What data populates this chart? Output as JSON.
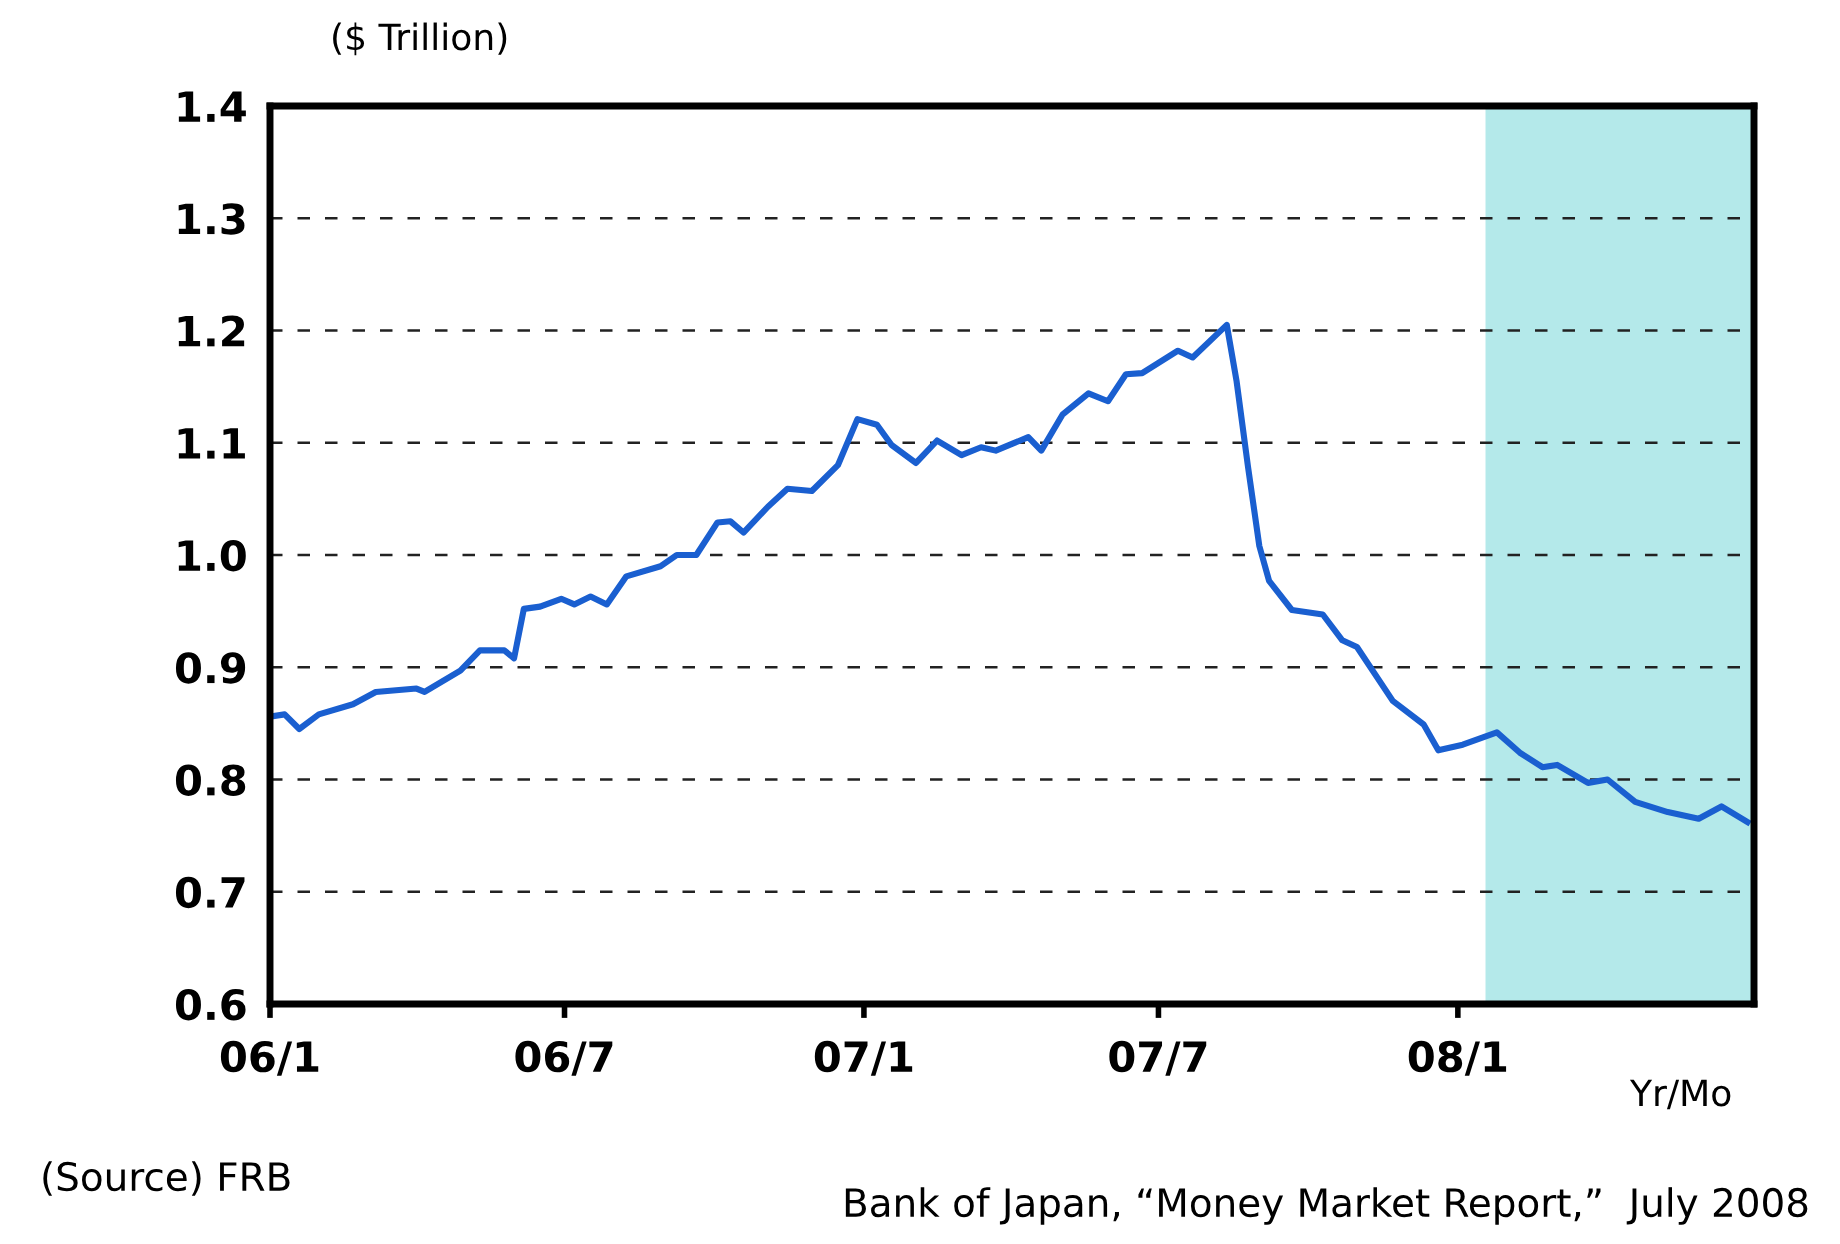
{
  "chart_data": {
    "type": "line",
    "ylabel": "($ Trillion)",
    "xlabel": "Yr/Mo",
    "annotations": [
      "(Source) FRB",
      "Bank of Japan, “Money Market Report,”  July 2008"
    ],
    "x": [
      "2006-01-01",
      "2006-01-10",
      "2006-01-19",
      "2006-01-31",
      "2006-02-21",
      "2006-03-07",
      "2006-04-01",
      "2006-04-06",
      "2006-04-28",
      "2006-05-10",
      "2006-05-25",
      "2006-05-31",
      "2006-06-06",
      "2006-06-16",
      "2006-06-29",
      "2006-07-07",
      "2006-07-17",
      "2006-07-27",
      "2006-08-08",
      "2006-08-29",
      "2006-09-08",
      "2006-09-20",
      "2006-10-03",
      "2006-10-11",
      "2006-10-19",
      "2006-11-03",
      "2006-11-15",
      "2006-11-30",
      "2006-12-16",
      "2006-12-28",
      "2007-01-09",
      "2007-01-18",
      "2007-02-02",
      "2007-02-15",
      "2007-03-02",
      "2007-03-14",
      "2007-03-23",
      "2007-04-12",
      "2007-04-20",
      "2007-05-03",
      "2007-05-19",
      "2007-05-31",
      "2007-06-11",
      "2007-06-21",
      "2007-07-13",
      "2007-07-22",
      "2007-08-12",
      "2007-08-18",
      "2007-08-25",
      "2007-09-01",
      "2007-09-07",
      "2007-09-21",
      "2007-10-10",
      "2007-10-22",
      "2007-10-31",
      "2007-11-22",
      "2007-12-11",
      "2007-12-20",
      "2008-01-04",
      "2008-01-25",
      "2008-02-08",
      "2008-02-22",
      "2008-03-02",
      "2008-03-21",
      "2008-04-02",
      "2008-04-19",
      "2008-05-09",
      "2008-05-28",
      "2008-06-11",
      "2008-06-27"
    ],
    "series": [
      {
        "color": "#1a5fd0",
        "values": [
          0.856,
          0.858,
          0.845,
          0.858,
          0.867,
          0.878,
          0.881,
          0.878,
          0.897,
          0.915,
          0.915,
          0.908,
          0.952,
          0.954,
          0.961,
          0.956,
          0.963,
          0.956,
          0.981,
          0.99,
          1.0,
          1.0,
          1.029,
          1.03,
          1.02,
          1.043,
          1.059,
          1.057,
          1.08,
          1.121,
          1.116,
          1.098,
          1.082,
          1.102,
          1.089,
          1.096,
          1.093,
          1.105,
          1.093,
          1.125,
          1.144,
          1.137,
          1.161,
          1.162,
          1.182,
          1.176,
          1.205,
          1.155,
          1.079,
          1.008,
          0.977,
          0.951,
          0.947,
          0.924,
          0.918,
          0.87,
          0.849,
          0.826,
          0.831,
          0.842,
          0.824,
          0.811,
          0.813,
          0.797,
          0.8,
          0.78,
          0.771,
          0.765,
          0.776,
          0.762
        ]
      }
    ],
    "xlim": [
      "2006-01-01",
      "2008-07-01"
    ],
    "xticks": [
      {
        "value": "2006-01-01",
        "label": "06/1"
      },
      {
        "value": "2006-07-01",
        "label": "06/7"
      },
      {
        "value": "2007-01-01",
        "label": "07/1"
      },
      {
        "value": "2007-07-01",
        "label": "07/7"
      },
      {
        "value": "2008-01-01",
        "label": "08/1"
      }
    ],
    "ylim": [
      0.6,
      1.4
    ],
    "yticks": [
      0.6,
      0.7,
      0.8,
      0.9,
      {
        "value": 1,
        "label": "1.0"
      },
      1.1,
      1.2,
      1.3,
      1.4
    ],
    "grid": "y",
    "marker": "none",
    "line_style": "solid",
    "bands": [
      {
        "axis": "x",
        "from": "2008-01-18",
        "to": "2008-07-01",
        "color": "#b4e9ea"
      }
    ]
  }
}
